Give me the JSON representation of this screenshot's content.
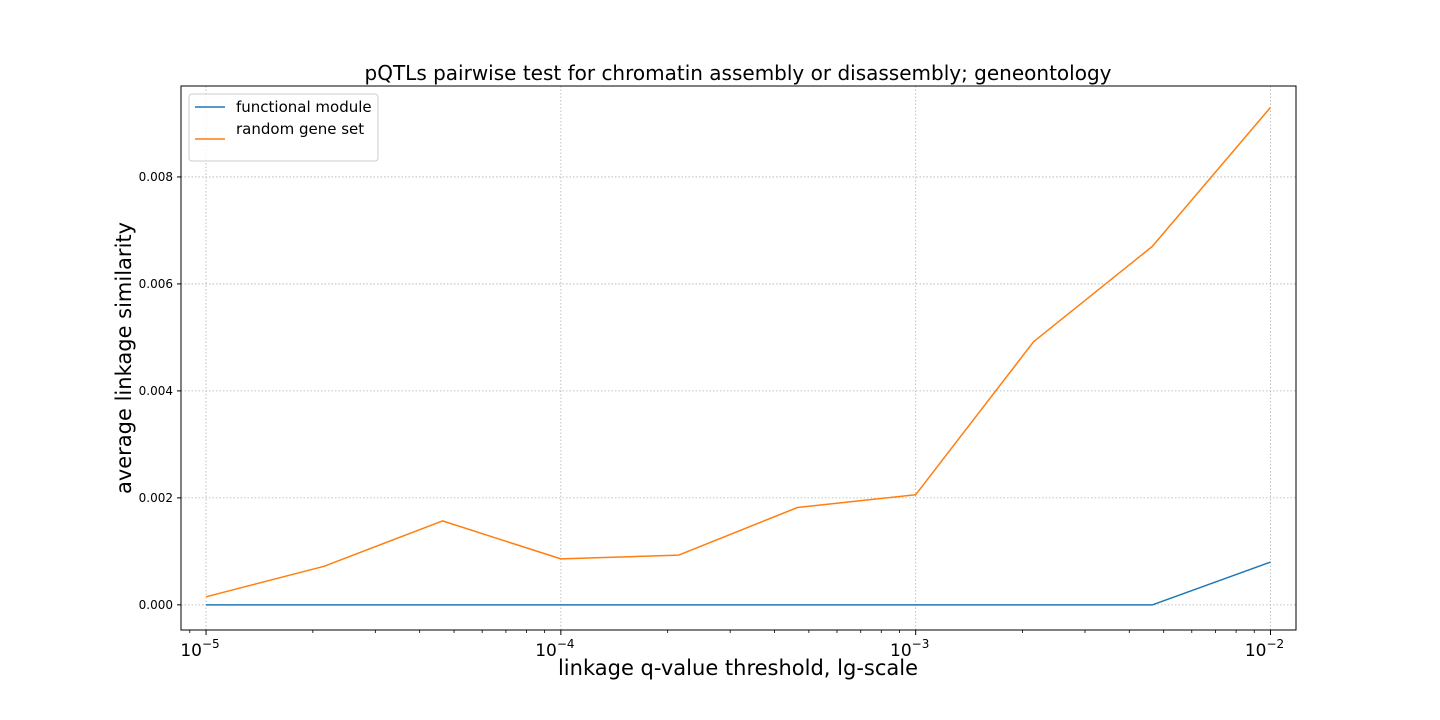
{
  "chart_data": {
    "type": "line",
    "title": "pQTLs pairwise test for chromatin assembly or disassembly; geneontology",
    "xlabel": "linkage q-value threshold, lg-scale",
    "ylabel": "average linkage similarity",
    "xscale": "log10",
    "xlim": [
      8.5e-06,
      0.0118
    ],
    "ylim": [
      -0.00047,
      0.0097
    ],
    "grid": true,
    "legend_position": "top-left",
    "x": [
      1e-05,
      2.15e-05,
      4.64e-05,
      0.0001,
      0.000215,
      0.000464,
      0.001,
      0.00215,
      0.00464,
      0.01
    ],
    "xticks": [
      {
        "value": 1e-05,
        "base": "10",
        "exp": "−5"
      },
      {
        "value": 0.0001,
        "base": "10",
        "exp": "−4"
      },
      {
        "value": 0.001,
        "base": "10",
        "exp": "−3"
      },
      {
        "value": 0.01,
        "base": "10",
        "exp": "−2"
      }
    ],
    "yticks": [
      {
        "value": 0.0,
        "label": "0.000"
      },
      {
        "value": 0.002,
        "label": "0.002"
      },
      {
        "value": 0.004,
        "label": "0.004"
      },
      {
        "value": 0.006,
        "label": "0.006"
      },
      {
        "value": 0.008,
        "label": "0.008"
      }
    ],
    "series": [
      {
        "name": "functional module",
        "color": "#1f77b4",
        "values": [
          0,
          0,
          0,
          0,
          0,
          0,
          0,
          0,
          0,
          0.0008
        ]
      },
      {
        "name": "random gene set",
        "color": "#ff7f0e",
        "values": [
          0.00015,
          0.00072,
          0.00157,
          0.00086,
          0.00093,
          0.00182,
          0.00206,
          0.00492,
          0.0067,
          0.0093
        ]
      }
    ]
  }
}
